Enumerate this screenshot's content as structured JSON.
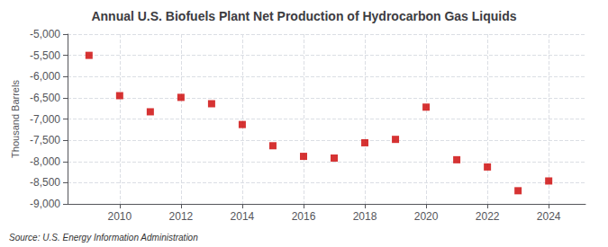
{
  "chart_data": {
    "type": "scatter",
    "title": "Annual U.S. Biofuels Plant Net Production of Hydrocarbon Gas Liquids",
    "ylabel": "Thousand Barrels",
    "annotations": [
      "Source: U.S. Energy Information Administration"
    ],
    "x": [
      2009,
      2010,
      2011,
      2012,
      2013,
      2014,
      2015,
      2016,
      2017,
      2018,
      2019,
      2020,
      2021,
      2022,
      2023,
      2024
    ],
    "values": [
      -5500,
      -6450,
      -6830,
      -6490,
      -6640,
      -7130,
      -7630,
      -7880,
      -7920,
      -7560,
      -7480,
      -6720,
      -7960,
      -8130,
      -8690,
      -8460
    ],
    "color": "#cc0000",
    "marker": "square",
    "xlim": [
      2008.3,
      2025.2
    ],
    "xticks": [
      2010,
      2012,
      2014,
      2016,
      2018,
      2020,
      2022,
      2024
    ],
    "ylim": [
      -9000,
      -5000
    ],
    "yticks": [
      {
        "value": -9000,
        "label": "-9,000"
      },
      {
        "value": -8500,
        "label": "-8,500"
      },
      {
        "value": -8000,
        "label": "-8,000"
      },
      {
        "value": -7500,
        "label": "-7,500"
      },
      {
        "value": -7000,
        "label": "-7,000"
      },
      {
        "value": -6500,
        "label": "-6,500"
      },
      {
        "value": -6000,
        "label": "-6,000"
      },
      {
        "value": -5500,
        "label": "-5,500"
      },
      {
        "value": -5000,
        "label": "-5,000"
      }
    ],
    "grid": true
  }
}
